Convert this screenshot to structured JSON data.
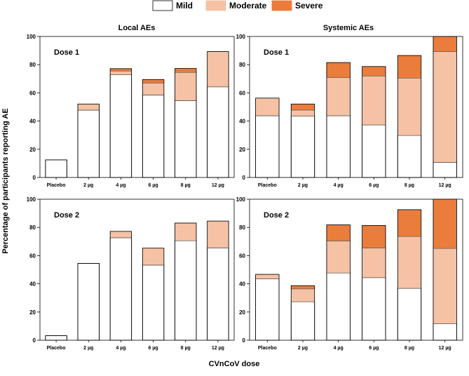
{
  "chart_data": {
    "type": "bar",
    "stacked": true,
    "ylabel": "Percentage of participants reporting AE",
    "xlabel": "CVnCoV dose",
    "ylim": [
      0,
      100
    ],
    "yticks": [
      0,
      20,
      40,
      60,
      80,
      100
    ],
    "categories": [
      "Placebo",
      "2 µg",
      "4 µg",
      "6 µg",
      "8 µg",
      "12 µg"
    ],
    "legend": {
      "position": "top-center",
      "entries": [
        {
          "name": "Mild",
          "color": "#ffffff"
        },
        {
          "name": "Moderate",
          "color": "#f5c2a5"
        },
        {
          "name": "Severe",
          "color": "#ea7d3c"
        }
      ]
    },
    "column_titles": [
      "Local AEs",
      "Systemic AEs"
    ],
    "panels": [
      {
        "title": "Local AEs",
        "dose": "Dose 1",
        "series": [
          {
            "name": "Mild",
            "values": [
              12.5,
              47.8,
              73.0,
              58.5,
              54.5,
              64.3
            ]
          },
          {
            "name": "Moderate",
            "values": [
              0,
              4.3,
              2.5,
              8.5,
              20.0,
              25.0
            ]
          },
          {
            "name": "Severe",
            "values": [
              0,
              0,
              1.7,
              2.5,
              2.8,
              0
            ]
          }
        ]
      },
      {
        "title": "Systemic AEs",
        "dose": "Dose 1",
        "series": [
          {
            "name": "Mild",
            "values": [
              43.8,
              43.5,
              43.8,
              37.3,
              29.8,
              10.7
            ]
          },
          {
            "name": "Moderate",
            "values": [
              12.5,
              4.3,
              27.0,
              34.7,
              40.7,
              78.6
            ]
          },
          {
            "name": "Severe",
            "values": [
              0,
              4.3,
              10.7,
              6.7,
              16.0,
              10.7
            ]
          }
        ]
      },
      {
        "title": "Local AEs",
        "dose": "Dose 2",
        "series": [
          {
            "name": "Mild",
            "values": [
              3.2,
              54.5,
              72.7,
              53.3,
              70.6,
              65.5
            ]
          },
          {
            "name": "Moderate",
            "values": [
              0,
              0,
              4.5,
              12.0,
              12.5,
              19.0
            ]
          },
          {
            "name": "Severe",
            "values": [
              0,
              0,
              0,
              0,
              0,
              0
            ]
          }
        ]
      },
      {
        "title": "Systemic AEs",
        "dose": "Dose 2",
        "series": [
          {
            "name": "Mild",
            "values": [
              43.5,
              27.3,
              47.7,
              44.4,
              36.8,
              11.8
            ]
          },
          {
            "name": "Moderate",
            "values": [
              3.2,
              9.1,
              22.7,
              21.0,
              36.8,
              53.3
            ]
          },
          {
            "name": "Severe",
            "values": [
              0,
              2.3,
              11.4,
              16.0,
              19.0,
              34.9
            ]
          }
        ]
      }
    ]
  }
}
